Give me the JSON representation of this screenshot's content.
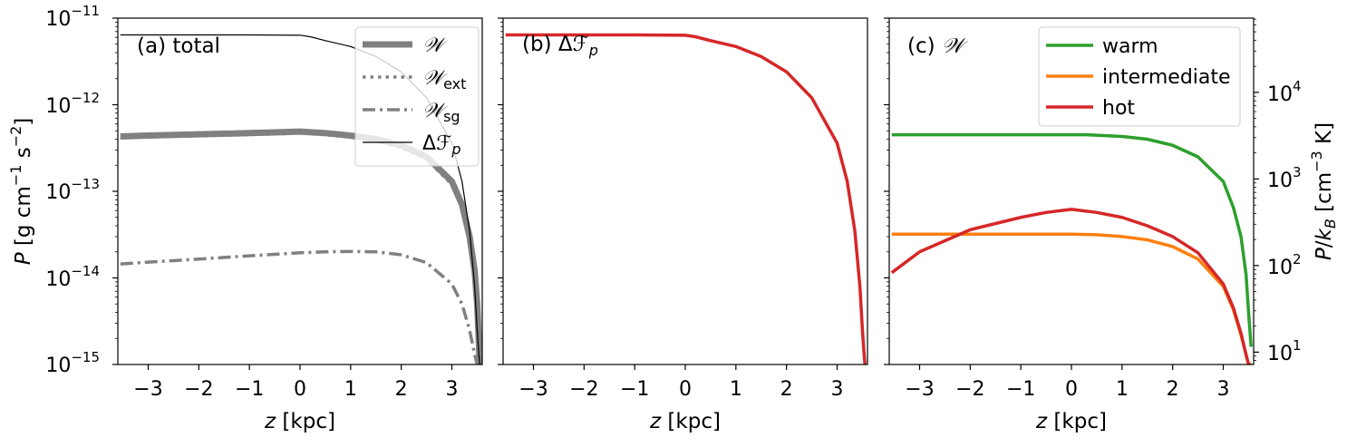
{
  "chart_data": [
    {
      "id": "a",
      "type": "line",
      "annotation": "(a) total",
      "xlabel": "z [kpc]",
      "ylabel": "P [g cm^-1 s^-2]",
      "xlim": [
        -3.6,
        3.6
      ],
      "ylim": [
        1e-15,
        1e-11
      ],
      "yscale": "log",
      "xticks": [
        -3,
        -2,
        -1,
        0,
        1,
        2,
        3
      ],
      "xtick_labels": [
        "−3",
        "−2",
        "−1",
        "0",
        "1",
        "2",
        "3"
      ],
      "yticks": [
        1e-15,
        1e-14,
        1e-13,
        1e-12,
        1e-11
      ],
      "ytick_labels": [
        "10^-15",
        "10^-14",
        "10^-13",
        "10^-12",
        "10^-11"
      ],
      "legend_position": "top-right",
      "series": [
        {
          "name": "𝒲",
          "color": "#808080",
          "style": "solid-thick",
          "x": [
            -3.55,
            -3.0,
            -2.0,
            -1.0,
            -0.5,
            0.0,
            0.5,
            1.0,
            1.5,
            2.0,
            2.5,
            3.0,
            3.2,
            3.35,
            3.45,
            3.5,
            3.53,
            3.55
          ],
          "y": [
            4.3e-13,
            4.4e-13,
            4.55e-13,
            4.7e-13,
            4.8e-13,
            4.9e-13,
            4.7e-13,
            4.4e-13,
            4e-13,
            3.4e-13,
            2.5e-13,
            1.3e-13,
            7e-14,
            3e-14,
            1.2e-14,
            5e-15,
            2e-15,
            1e-15
          ]
        },
        {
          "name": "𝒲ext",
          "color": "#808080",
          "style": "dotted",
          "x": [
            -3.55,
            -3.0,
            -2.0,
            -1.0,
            -0.5,
            0.0,
            0.5,
            1.0,
            1.5,
            2.0,
            2.5,
            3.0,
            3.2,
            3.35,
            3.45,
            3.5,
            3.53,
            3.55
          ],
          "y": [
            4.15e-13,
            4.25e-13,
            4.38e-13,
            4.5e-13,
            4.6e-13,
            4.7e-13,
            4.5e-13,
            4.2e-13,
            3.8e-13,
            3.2e-13,
            2.35e-13,
            1.2e-13,
            6.5e-14,
            2.8e-14,
            1.1e-14,
            4.5e-15,
            1.8e-15,
            1e-15
          ]
        },
        {
          "name": "𝒲sg",
          "color": "#808080",
          "style": "dashdot",
          "x": [
            -3.55,
            -3.0,
            -2.0,
            -1.0,
            0.0,
            0.5,
            1.0,
            1.5,
            2.0,
            2.5,
            3.0,
            3.2,
            3.35,
            3.45,
            3.5
          ],
          "y": [
            1.45e-14,
            1.52e-14,
            1.65e-14,
            1.8e-14,
            1.95e-14,
            2e-14,
            2.02e-14,
            2e-14,
            1.85e-14,
            1.5e-14,
            8.5e-15,
            5e-15,
            2.5e-15,
            1.3e-15,
            1e-15
          ]
        },
        {
          "name": "ΔF_p",
          "color": "#000000",
          "style": "solid-thin",
          "x": [
            -3.55,
            -3.0,
            -2.0,
            -1.0,
            0.0,
            0.2,
            0.5,
            1.0,
            1.5,
            2.0,
            2.5,
            3.0,
            3.2,
            3.35,
            3.45,
            3.5,
            3.53,
            3.55
          ],
          "y": [
            6.4e-12,
            6.4e-12,
            6.4e-12,
            6.4e-12,
            6.35e-12,
            6.1e-12,
            5.5e-12,
            4.7e-12,
            3.6e-12,
            2.4e-12,
            1.2e-12,
            3.6e-13,
            1.3e-13,
            3.5e-14,
            8e-15,
            2.5e-15,
            1.4e-15,
            1e-15
          ]
        }
      ]
    },
    {
      "id": "b",
      "type": "line",
      "annotation": "(b) ΔF_p",
      "xlabel": "z [kpc]",
      "xlim": [
        -3.6,
        3.6
      ],
      "ylim": [
        1e-15,
        1e-11
      ],
      "yscale": "log",
      "xticks": [
        -3,
        -2,
        -1,
        0,
        1,
        2,
        3
      ],
      "xtick_labels": [
        "−3",
        "−2",
        "−1",
        "0",
        "1",
        "2",
        "3"
      ],
      "series": [
        {
          "name": "ΔF_p",
          "color": "#d62728",
          "style": "solid",
          "x": [
            -3.55,
            -3.0,
            -2.0,
            -1.0,
            0.0,
            0.2,
            0.5,
            1.0,
            1.5,
            2.0,
            2.5,
            3.0,
            3.2,
            3.35,
            3.45,
            3.5,
            3.53,
            3.55
          ],
          "y": [
            6.4e-12,
            6.4e-12,
            6.4e-12,
            6.4e-12,
            6.35e-12,
            6.1e-12,
            5.5e-12,
            4.7e-12,
            3.6e-12,
            2.4e-12,
            1.2e-12,
            3.6e-13,
            1.3e-13,
            3.5e-14,
            8e-15,
            2.5e-15,
            1.4e-15,
            1e-15
          ]
        }
      ]
    },
    {
      "id": "c",
      "type": "line",
      "annotation": "(c) 𝒲",
      "xlabel": "z [kpc]",
      "ylabel_right": "P/k_B [cm^-3 K]",
      "xlim": [
        -3.6,
        3.6
      ],
      "ylim": [
        1e-15,
        1e-11
      ],
      "yscale": "log",
      "right_ylim": [
        7.2,
        72000
      ],
      "right_yscale": "log",
      "xticks": [
        -3,
        -2,
        -1,
        0,
        1,
        2,
        3
      ],
      "xtick_labels": [
        "−3",
        "−2",
        "−1",
        "0",
        "1",
        "2",
        "3"
      ],
      "right_yticks": [
        10,
        100,
        1000,
        10000
      ],
      "right_ytick_labels": [
        "10^1",
        "10^2",
        "10^3",
        "10^4"
      ],
      "legend_position": "top-right",
      "series": [
        {
          "name": "warm",
          "color": "#2ca02c",
          "style": "solid",
          "x": [
            -3.55,
            -3.0,
            -2.0,
            -1.0,
            0.0,
            0.3,
            1.0,
            1.5,
            2.0,
            2.5,
            3.0,
            3.2,
            3.35,
            3.45,
            3.5,
            3.55
          ],
          "y": [
            4.5e-13,
            4.5e-13,
            4.5e-13,
            4.5e-13,
            4.5e-13,
            4.5e-13,
            4.3e-13,
            4e-13,
            3.4e-13,
            2.5e-13,
            1.3e-13,
            6.5e-14,
            3e-14,
            1.1e-14,
            4e-15,
            1.6e-15
          ]
        },
        {
          "name": "intermediate",
          "color": "#ff7f0e",
          "style": "solid",
          "x": [
            -3.55,
            -3.0,
            -2.0,
            -1.0,
            0.0,
            0.5,
            1.0,
            1.5,
            2.0,
            2.5,
            3.0,
            3.2,
            3.35,
            3.45,
            3.5,
            3.55
          ],
          "y": [
            3.2e-14,
            3.2e-14,
            3.2e-14,
            3.2e-14,
            3.2e-14,
            3.15e-14,
            3e-14,
            2.75e-14,
            2.3e-14,
            1.65e-14,
            8e-15,
            4.3e-15,
            2.2e-15,
            1.3e-15,
            1e-15,
            1e-15
          ]
        },
        {
          "name": "hot",
          "color": "#d62728",
          "style": "solid",
          "x": [
            -3.55,
            -3.0,
            -2.0,
            -1.0,
            -0.5,
            0.0,
            0.5,
            1.0,
            1.5,
            2.0,
            2.5,
            3.0,
            3.2,
            3.35,
            3.45,
            3.5,
            3.55
          ],
          "y": [
            1.15e-14,
            2e-14,
            3.6e-14,
            5e-14,
            5.7e-14,
            6.2e-14,
            5.7e-14,
            5e-14,
            4e-14,
            3e-14,
            1.95e-14,
            8.5e-15,
            4.5e-15,
            2.3e-15,
            1.3e-15,
            1e-15,
            1e-15
          ]
        }
      ]
    }
  ]
}
